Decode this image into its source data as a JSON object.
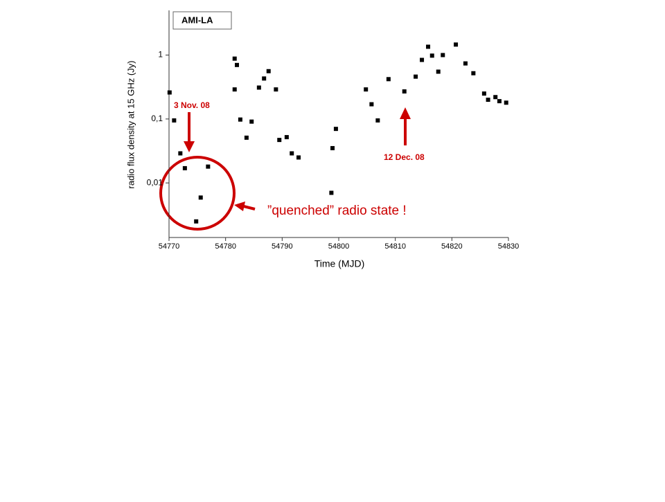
{
  "chart_data": {
    "type": "scatter",
    "box_label": "AMI-LA",
    "xlabel": "Time (MJD)",
    "ylabel": "radio flux density at 15 GHz (Jy)",
    "annotations": [
      "3 Nov. 08",
      "12 Dec. 08",
      "”quenched” radio state !"
    ],
    "log_y": true,
    "color": "#000000",
    "annotation_color": "#cc0000",
    "xlim": [
      54770,
      54830
    ],
    "xticks": [
      54770,
      54780,
      54790,
      54800,
      54810,
      54820,
      54830
    ],
    "ylim": [
      0.0014,
      5
    ],
    "yticks": [
      {
        "value": 0.01,
        "label": "0,01"
      },
      {
        "value": 0.1,
        "label": "0,1"
      },
      1
    ],
    "x": [
      54770.1,
      54770.9,
      54772.0,
      54772.8,
      54774.8,
      54775.6,
      54776.9,
      54781.6,
      54782.0,
      54781.6,
      54782.6,
      54783.7,
      54784.6,
      54785.9,
      54786.8,
      54787.6,
      54788.9,
      54789.5,
      54790.8,
      54791.7,
      54792.9,
      54798.7,
      54798.9,
      54799.5,
      54804.8,
      54805.8,
      54806.9,
      54808.8,
      54811.6,
      54813.6,
      54814.7,
      54815.8,
      54816.5,
      54817.6,
      54818.4,
      54820.7,
      54822.4,
      54823.8,
      54825.7,
      54826.4,
      54827.7,
      54828.4,
      54829.6
    ],
    "values": [
      0.26,
      0.095,
      0.029,
      0.017,
      0.0025,
      0.0059,
      0.018,
      0.88,
      0.7,
      0.29,
      0.098,
      0.051,
      0.091,
      0.31,
      0.43,
      0.56,
      0.29,
      0.047,
      0.052,
      0.029,
      0.025,
      0.007,
      0.035,
      0.07,
      0.29,
      0.17,
      0.095,
      0.42,
      0.27,
      0.46,
      0.84,
      1.35,
      0.98,
      0.55,
      1.0,
      1.46,
      0.74,
      0.52,
      0.25,
      0.2,
      0.22,
      0.19,
      0.18
    ]
  }
}
